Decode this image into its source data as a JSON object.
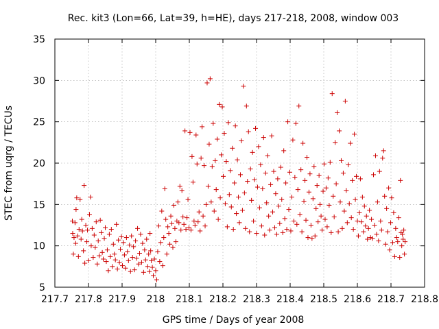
{
  "chart_data": {
    "type": "scatter",
    "title": "Rec. kit3 (Lon=66, Lat=39, h=HE), days 217-218, 2008, window 003",
    "xlabel": "GPS time / Days of year 2008",
    "ylabel": "STEC from uqrg / TECUs",
    "xlim": [
      217.7,
      218.8
    ],
    "ylim": [
      5,
      35
    ],
    "x_ticks": [
      "217.7",
      "217.8",
      "217.9",
      "218",
      "218.1",
      "218.2",
      "218.3",
      "218.4",
      "218.5",
      "218.6",
      "218.7",
      "218.8"
    ],
    "y_ticks": [
      "5",
      "10",
      "15",
      "20",
      "25",
      "30",
      "35"
    ],
    "grid": true,
    "marker": "+",
    "color": "#cc0000",
    "points": [
      [
        217.752,
        13.0
      ],
      [
        217.753,
        11.5
      ],
      [
        217.755,
        9.0
      ],
      [
        217.757,
        11.0
      ],
      [
        217.76,
        12.8
      ],
      [
        217.762,
        10.3
      ],
      [
        217.763,
        14.4
      ],
      [
        217.765,
        15.8
      ],
      [
        217.768,
        11.2
      ],
      [
        217.77,
        8.7
      ],
      [
        217.772,
        12.0
      ],
      [
        217.775,
        15.6
      ],
      [
        217.778,
        10.8
      ],
      [
        217.78,
        13.2
      ],
      [
        217.782,
        11.8
      ],
      [
        217.785,
        9.4
      ],
      [
        217.787,
        17.3
      ],
      [
        217.789,
        7.9
      ],
      [
        217.792,
        12.5
      ],
      [
        217.795,
        10.5
      ],
      [
        217.797,
        11.9
      ],
      [
        217.8,
        8.2
      ],
      [
        217.803,
        13.8
      ],
      [
        217.806,
        15.9
      ],
      [
        217.808,
        10.0
      ],
      [
        217.811,
        12.1
      ],
      [
        217.814,
        8.6
      ],
      [
        217.817,
        11.3
      ],
      [
        217.82,
        9.8
      ],
      [
        217.823,
        12.9
      ],
      [
        217.826,
        7.8
      ],
      [
        217.829,
        10.6
      ],
      [
        217.832,
        8.8
      ],
      [
        217.835,
        13.1
      ],
      [
        217.838,
        11.6
      ],
      [
        217.841,
        9.2
      ],
      [
        217.844,
        8.4
      ],
      [
        217.847,
        10.9
      ],
      [
        217.85,
        12.2
      ],
      [
        217.853,
        8.1
      ],
      [
        217.856,
        9.5
      ],
      [
        217.859,
        7.0
      ],
      [
        217.862,
        11.4
      ],
      [
        217.865,
        8.7
      ],
      [
        217.868,
        12.0
      ],
      [
        217.871,
        7.5
      ],
      [
        217.874,
        10.2
      ],
      [
        217.877,
        9.0
      ],
      [
        217.88,
        8.3
      ],
      [
        217.883,
        12.6
      ],
      [
        217.886,
        7.2
      ],
      [
        217.889,
        10.7
      ],
      [
        217.892,
        8.0
      ],
      [
        217.895,
        9.6
      ],
      [
        217.898,
        11.1
      ],
      [
        217.901,
        7.6
      ],
      [
        217.904,
        10.4
      ],
      [
        217.907,
        8.9
      ],
      [
        217.91,
        7.3
      ],
      [
        217.913,
        11.0
      ],
      [
        217.916,
        9.3
      ],
      [
        217.919,
        8.2
      ],
      [
        217.922,
        10.1
      ],
      [
        217.925,
        6.9
      ],
      [
        217.928,
        11.2
      ],
      [
        217.931,
        8.6
      ],
      [
        217.934,
        9.9
      ],
      [
        217.937,
        7.1
      ],
      [
        217.94,
        10.6
      ],
      [
        217.943,
        8.5
      ],
      [
        217.946,
        12.1
      ],
      [
        217.949,
        7.8
      ],
      [
        217.952,
        9.1
      ],
      [
        217.955,
        11.4
      ],
      [
        217.958,
        8.0
      ],
      [
        217.961,
        10.3
      ],
      [
        217.964,
        6.8
      ],
      [
        217.967,
        9.5
      ],
      [
        217.97,
        8.3
      ],
      [
        217.973,
        10.8
      ],
      [
        217.976,
        7.5
      ],
      [
        217.979,
        9.0
      ],
      [
        217.981,
        6.9
      ],
      [
        217.983,
        11.5
      ],
      [
        217.985,
        9.4
      ],
      [
        217.987,
        8.2
      ],
      [
        217.99,
        7.4
      ],
      [
        217.993,
        6.4
      ],
      [
        217.996,
        8.4
      ],
      [
        218.0,
        7.0
      ],
      [
        218.003,
        5.9
      ],
      [
        218.006,
        9.3
      ],
      [
        218.009,
        12.4
      ],
      [
        218.012,
        8.1
      ],
      [
        218.015,
        10.4
      ],
      [
        218.018,
        14.2
      ],
      [
        218.021,
        7.6
      ],
      [
        218.024,
        11.0
      ],
      [
        218.027,
        16.9
      ],
      [
        218.03,
        13.2
      ],
      [
        218.033,
        9.0
      ],
      [
        218.036,
        12.3
      ],
      [
        218.039,
        11.5
      ],
      [
        218.042,
        10.2
      ],
      [
        218.045,
        13.6
      ],
      [
        218.048,
        12.7
      ],
      [
        218.051,
        9.8
      ],
      [
        218.054,
        14.9
      ],
      [
        218.057,
        12.1
      ],
      [
        218.06,
        10.5
      ],
      [
        218.063,
        13.0
      ],
      [
        218.066,
        15.3
      ],
      [
        218.069,
        12.8
      ],
      [
        218.072,
        17.2
      ],
      [
        218.075,
        11.9
      ],
      [
        218.078,
        16.7
      ],
      [
        218.081,
        13.5
      ],
      [
        218.084,
        12.6
      ],
      [
        218.087,
        23.9
      ],
      [
        218.09,
        12.0
      ],
      [
        218.093,
        13.4
      ],
      [
        218.096,
        15.6
      ],
      [
        218.099,
        12.2
      ],
      [
        218.102,
        23.7
      ],
      [
        218.105,
        11.9
      ],
      [
        218.108,
        20.8
      ],
      [
        218.111,
        17.7
      ],
      [
        218.114,
        13.0
      ],
      [
        218.117,
        12.5
      ],
      [
        218.12,
        23.4
      ],
      [
        218.123,
        19.9
      ],
      [
        218.126,
        12.9
      ],
      [
        218.129,
        14.1
      ],
      [
        218.132,
        11.8
      ],
      [
        218.135,
        20.6
      ],
      [
        218.138,
        24.4
      ],
      [
        218.141,
        13.6
      ],
      [
        218.144,
        19.7
      ],
      [
        218.147,
        12.4
      ],
      [
        218.15,
        15.0
      ],
      [
        218.153,
        29.7
      ],
      [
        218.156,
        17.2
      ],
      [
        218.159,
        22.3
      ],
      [
        218.162,
        30.2
      ],
      [
        218.165,
        15.3
      ],
      [
        218.168,
        19.6
      ],
      [
        218.171,
        24.8
      ],
      [
        218.174,
        14.2
      ],
      [
        218.177,
        20.3
      ],
      [
        218.18,
        16.8
      ],
      [
        218.183,
        22.9
      ],
      [
        218.186,
        13.2
      ],
      [
        218.189,
        27.1
      ],
      [
        218.192,
        15.8
      ],
      [
        218.195,
        21.0
      ],
      [
        218.198,
        26.8
      ],
      [
        218.201,
        18.4
      ],
      [
        218.204,
        23.6
      ],
      [
        218.207,
        15.1
      ],
      [
        218.21,
        20.2
      ],
      [
        218.213,
        12.3
      ],
      [
        218.216,
        24.9
      ],
      [
        218.219,
        16.2
      ],
      [
        218.222,
        19.1
      ],
      [
        218.225,
        14.7
      ],
      [
        218.228,
        21.8
      ],
      [
        218.231,
        12.0
      ],
      [
        218.234,
        17.6
      ],
      [
        218.237,
        24.5
      ],
      [
        218.24,
        13.9
      ],
      [
        218.243,
        20.4
      ],
      [
        218.246,
        15.9
      ],
      [
        218.249,
        12.8
      ],
      [
        218.252,
        18.6
      ],
      [
        218.255,
        22.7
      ],
      [
        218.258,
        14.3
      ],
      [
        218.261,
        29.3
      ],
      [
        218.264,
        16.4
      ],
      [
        218.267,
        12.1
      ],
      [
        218.27,
        26.9
      ],
      [
        218.273,
        17.8
      ],
      [
        218.276,
        23.8
      ],
      [
        218.279,
        11.7
      ],
      [
        218.282,
        19.3
      ],
      [
        218.285,
        15.5
      ],
      [
        218.288,
        21.3
      ],
      [
        218.291,
        13.0
      ],
      [
        218.294,
        18.0
      ],
      [
        218.297,
        24.2
      ],
      [
        218.3,
        11.5
      ],
      [
        218.303,
        17.1
      ],
      [
        218.306,
        22.0
      ],
      [
        218.309,
        14.6
      ],
      [
        218.312,
        19.8
      ],
      [
        218.315,
        12.4
      ],
      [
        218.318,
        16.9
      ],
      [
        218.321,
        23.1
      ],
      [
        218.324,
        11.3
      ],
      [
        218.327,
        18.8
      ],
      [
        218.33,
        15.2
      ],
      [
        218.333,
        20.9
      ],
      [
        218.336,
        13.6
      ],
      [
        218.339,
        11.9
      ],
      [
        218.342,
        17.4
      ],
      [
        218.345,
        23.3
      ],
      [
        218.348,
        14.1
      ],
      [
        218.351,
        19.0
      ],
      [
        218.354,
        12.2
      ],
      [
        218.357,
        16.3
      ],
      [
        218.36,
        11.4
      ],
      [
        218.363,
        18.1
      ],
      [
        218.366,
        14.8
      ],
      [
        218.369,
        12.7
      ],
      [
        218.372,
        19.5
      ],
      [
        218.375,
        15.6
      ],
      [
        218.378,
        11.6
      ],
      [
        218.381,
        21.5
      ],
      [
        218.384,
        13.3
      ],
      [
        218.387,
        17.6
      ],
      [
        218.39,
        12.0
      ],
      [
        218.393,
        25.0
      ],
      [
        218.396,
        14.4
      ],
      [
        218.399,
        18.9
      ],
      [
        218.402,
        11.8
      ],
      [
        218.405,
        15.9
      ],
      [
        218.408,
        22.8
      ],
      [
        218.411,
        13.0
      ],
      [
        218.414,
        18.3
      ],
      [
        218.417,
        24.8
      ],
      [
        218.42,
        12.6
      ],
      [
        218.423,
        16.8
      ],
      [
        218.426,
        26.9
      ],
      [
        218.429,
        13.8
      ],
      [
        218.432,
        19.2
      ],
      [
        218.435,
        11.7
      ],
      [
        218.438,
        22.4
      ],
      [
        218.441,
        15.4
      ],
      [
        218.444,
        17.9
      ],
      [
        218.447,
        13.1
      ],
      [
        218.45,
        20.7
      ],
      [
        218.453,
        11.0
      ],
      [
        218.456,
        16.5
      ],
      [
        218.459,
        18.7
      ],
      [
        218.462,
        12.5
      ],
      [
        218.465,
        10.9
      ],
      [
        218.468,
        15.7
      ],
      [
        218.471,
        19.6
      ],
      [
        218.474,
        11.2
      ],
      [
        218.477,
        14.5
      ],
      [
        218.48,
        17.3
      ],
      [
        218.483,
        12.9
      ],
      [
        218.486,
        18.5
      ],
      [
        218.489,
        15.0
      ],
      [
        218.492,
        13.6
      ],
      [
        218.495,
        11.9
      ],
      [
        218.498,
        16.6
      ],
      [
        218.501,
        19.9
      ],
      [
        218.504,
        13.2
      ],
      [
        218.507,
        17.0
      ],
      [
        218.51,
        12.3
      ],
      [
        218.513,
        18.2
      ],
      [
        218.516,
        14.9
      ],
      [
        218.519,
        20.1
      ],
      [
        218.522,
        11.6
      ],
      [
        218.525,
        28.4
      ],
      [
        218.528,
        16.0
      ],
      [
        218.531,
        13.5
      ],
      [
        218.534,
        22.5
      ],
      [
        218.537,
        17.5
      ],
      [
        218.54,
        26.1
      ],
      [
        218.543,
        11.7
      ],
      [
        218.546,
        23.9
      ],
      [
        218.549,
        15.3
      ],
      [
        218.552,
        20.3
      ],
      [
        218.555,
        12.1
      ],
      [
        218.558,
        18.8
      ],
      [
        218.561,
        14.2
      ],
      [
        218.564,
        27.5
      ],
      [
        218.567,
        16.7
      ],
      [
        218.57,
        12.8
      ],
      [
        218.573,
        19.8
      ],
      [
        218.576,
        15.1
      ],
      [
        218.579,
        22.4
      ],
      [
        218.582,
        13.4
      ],
      [
        218.585,
        17.9
      ],
      [
        218.588,
        12.0
      ],
      [
        218.591,
        23.5
      ],
      [
        218.594,
        15.6
      ],
      [
        218.597,
        18.4
      ],
      [
        218.6,
        13.0
      ],
      [
        218.603,
        11.2
      ],
      [
        218.606,
        14.0
      ],
      [
        218.609,
        18.1
      ],
      [
        218.612,
        12.9
      ],
      [
        218.615,
        15.9
      ],
      [
        218.618,
        11.7
      ],
      [
        218.621,
        14.8
      ],
      [
        218.624,
        12.4
      ],
      [
        218.627,
        13.6
      ],
      [
        218.63,
        10.8
      ],
      [
        218.633,
        12.1
      ],
      [
        218.636,
        14.3
      ],
      [
        218.639,
        11.0
      ],
      [
        218.642,
        13.2
      ],
      [
        218.645,
        10.9
      ],
      [
        218.648,
        18.6
      ],
      [
        218.651,
        12.5
      ],
      [
        218.654,
        20.9
      ],
      [
        218.657,
        11.4
      ],
      [
        218.66,
        15.3
      ],
      [
        218.663,
        10.6
      ],
      [
        218.666,
        19.0
      ],
      [
        218.669,
        13.0
      ],
      [
        218.672,
        11.9
      ],
      [
        218.675,
        20.6
      ],
      [
        218.678,
        21.5
      ],
      [
        218.681,
        16.0
      ],
      [
        218.684,
        10.2
      ],
      [
        218.687,
        14.5
      ],
      [
        218.69,
        11.7
      ],
      [
        218.693,
        17.0
      ],
      [
        218.696,
        9.5
      ],
      [
        218.699,
        12.8
      ],
      [
        218.702,
        15.8
      ],
      [
        218.705,
        10.4
      ],
      [
        218.708,
        14.0
      ],
      [
        218.711,
        8.7
      ],
      [
        218.714,
        12.1
      ],
      [
        218.717,
        11.0
      ],
      [
        218.72,
        10.5
      ],
      [
        218.723,
        13.4
      ],
      [
        218.726,
        8.6
      ],
      [
        218.728,
        17.9
      ],
      [
        218.73,
        11.6
      ],
      [
        218.732,
        10.0
      ],
      [
        218.734,
        11.4
      ],
      [
        218.736,
        10.8
      ],
      [
        218.738,
        11.9
      ],
      [
        218.74,
        9.0
      ],
      [
        218.742,
        10.5
      ]
    ]
  }
}
